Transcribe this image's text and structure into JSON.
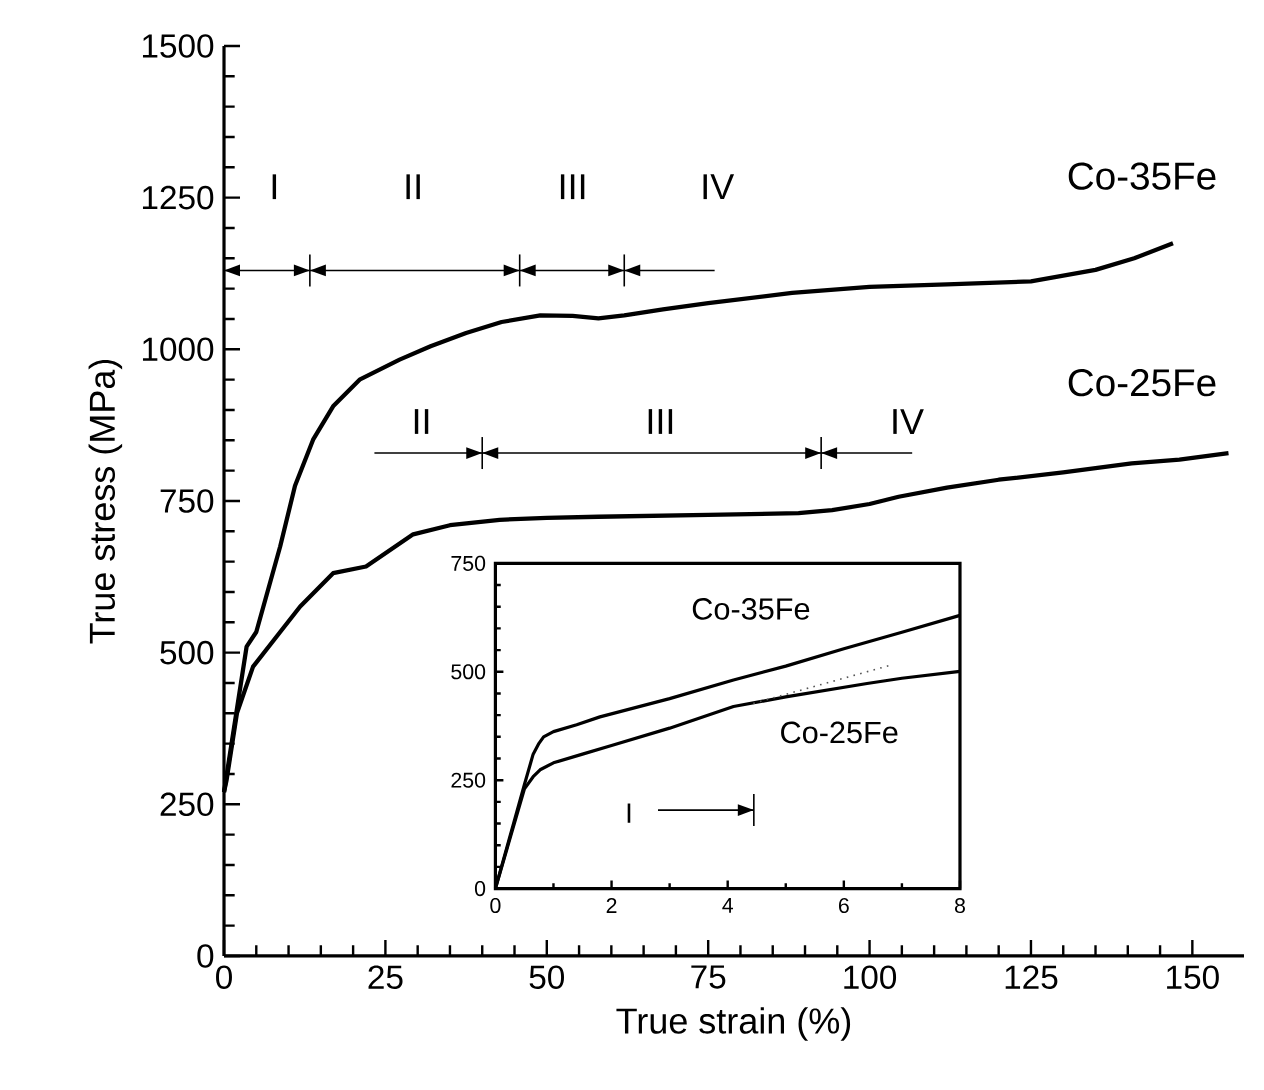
{
  "chart_data": [
    {
      "type": "line",
      "xlabel": "True strain (%)",
      "ylabel": "True stress (MPa)",
      "xlim": [
        0,
        158
      ],
      "ylim": [
        0,
        1500
      ],
      "xticks": [
        0,
        25,
        50,
        75,
        100,
        125,
        150
      ],
      "yticks": [
        0,
        250,
        500,
        750,
        1000,
        1250,
        1500
      ],
      "series": [
        {
          "name": "Co-35Fe",
          "color": "#000000",
          "x": [
            0,
            3.5,
            5,
            8.7,
            11,
            13.8,
            16.9,
            21,
            27.2,
            32,
            37.5,
            43,
            49,
            54,
            58,
            62,
            68,
            75,
            88,
            100,
            112,
            125,
            135,
            141,
            147
          ],
          "values": [
            270,
            510,
            534,
            675,
            775,
            851,
            906,
            950,
            983,
            1005,
            1027,
            1045,
            1056,
            1055,
            1051,
            1056,
            1066,
            1076,
            1093,
            1103,
            1107,
            1112,
            1131,
            1150,
            1175
          ]
        },
        {
          "name": "Co-25Fe",
          "color": "#000000",
          "x": [
            0,
            0.4,
            2,
            4.5,
            8.7,
            11.8,
            16.9,
            22,
            29.3,
            35,
            42.7,
            50,
            58,
            75,
            89,
            94.2,
            100,
            104.5,
            112,
            120,
            130,
            140.6,
            148,
            155.6
          ],
          "values": [
            270,
            290,
            400,
            477,
            534,
            576,
            631,
            642,
            695,
            710,
            719,
            722,
            724,
            727,
            730,
            735,
            745,
            757,
            772,
            785,
            797,
            812,
            818,
            829
          ]
        }
      ],
      "annotations": [
        "I",
        "II",
        "III",
        "IV",
        "II",
        "III",
        "IV"
      ]
    },
    {
      "type": "line",
      "xlim": [
        0,
        8
      ],
      "ylim": [
        0,
        750
      ],
      "xticks": [
        0,
        2,
        4,
        6,
        8
      ],
      "yticks": [
        0,
        250,
        500,
        750
      ],
      "series": [
        {
          "name": "Co-35Fe",
          "color": "#000000",
          "x": [
            0,
            0.5,
            0.65,
            0.75,
            0.83,
            1,
            1.4,
            1.8,
            3,
            4.1,
            5,
            6,
            7,
            8
          ],
          "values": [
            0,
            240,
            310,
            335,
            350,
            362,
            378,
            396,
            438,
            481,
            513,
            553,
            591,
            630
          ]
        },
        {
          "name": "Co-25Fe",
          "color": "#000000",
          "x": [
            0,
            0.5,
            0.65,
            0.77,
            1,
            1.5,
            2,
            3,
            4.1,
            5,
            6.4,
            7,
            8
          ],
          "values": [
            0,
            230,
            258,
            274,
            290,
            310,
            330,
            370,
            420,
            442,
            473,
            485,
            501
          ]
        },
        {
          "color": "#555555",
          "line_style": "dotted",
          "x": [
            4.44,
            6.8
          ],
          "values": [
            427,
            515
          ]
        }
      ],
      "annotations": [
        "I"
      ]
    }
  ]
}
